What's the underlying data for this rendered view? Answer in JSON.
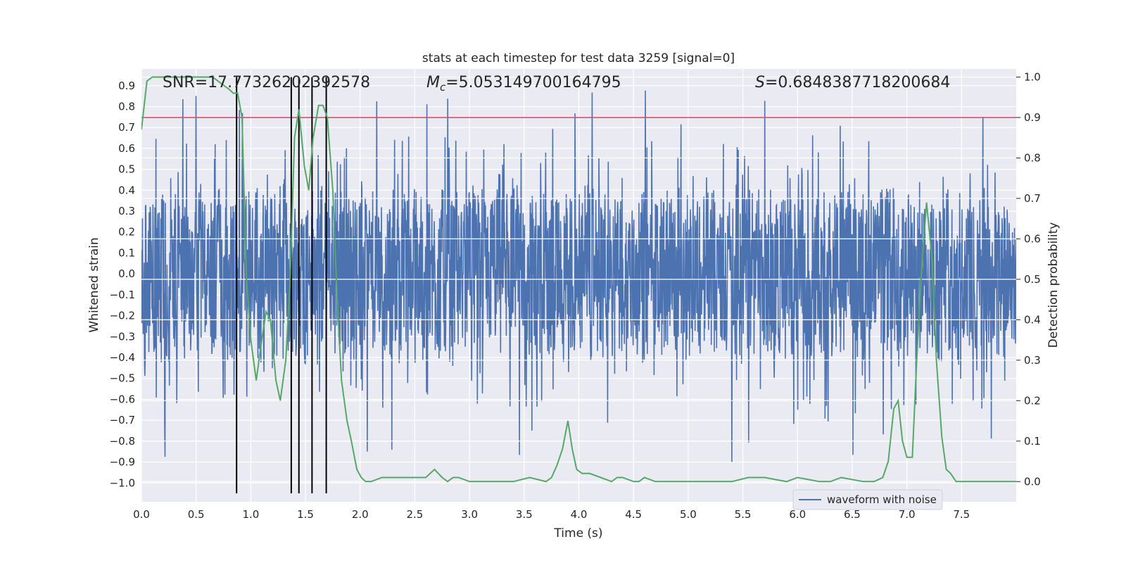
{
  "chart_data": {
    "type": "line",
    "title": "stats at each timestep for test data 3259 [signal=0]",
    "xlabel": "Time (s)",
    "ylabel": "Whitened strain",
    "ylabel_right": "Detection probability",
    "xlim": [
      0.0,
      8.0
    ],
    "ylim": [
      -1.09,
      0.98
    ],
    "ylim_right": [
      -0.05,
      1.02
    ],
    "x_ticks": [
      "0.0",
      "0.5",
      "1.0",
      "1.5",
      "2.0",
      "2.5",
      "3.0",
      "3.5",
      "4.0",
      "4.5",
      "5.0",
      "5.5",
      "6.0",
      "6.5",
      "7.0",
      "7.5"
    ],
    "y_ticks": [
      "0.9",
      "0.8",
      "0.7",
      "0.6",
      "0.5",
      "0.4",
      "0.3",
      "0.2",
      "0.1",
      "0.0",
      "−0.1",
      "−0.2",
      "−0.3",
      "−0.4",
      "−0.5",
      "−0.6",
      "−0.7",
      "−0.8",
      "−0.9",
      "−1.0"
    ],
    "y_right_ticks": [
      "1.0",
      "0.9",
      "0.8",
      "0.7",
      "0.6",
      "0.5",
      "0.4",
      "0.3",
      "0.2",
      "0.1",
      "0.0"
    ],
    "annotations": {
      "snr": "SNR=17.77326202392578",
      "mc_symbol": "M",
      "mc_sub": "c",
      "mc_value": "=5.053149700164795",
      "s_symbol": "S",
      "s_value": "=0.6848387718200684"
    },
    "legend": {
      "label": "waveform with noise",
      "position": "lower-right"
    },
    "threshold_line": {
      "y_right": 0.9,
      "color": "#c44e52"
    },
    "vertical_lines_x": [
      0.87,
      1.37,
      1.44,
      1.56,
      1.69
    ],
    "series": [
      {
        "name": "waveform with noise",
        "axis": "left",
        "color": "#4c72b0",
        "description": "whitened strain noise sampled at high rate, envelope approx ±0.4 with spikes to ±0.9"
      },
      {
        "name": "detection probability",
        "axis": "right",
        "color": "#55a868",
        "x": [
          0.0,
          0.05,
          0.1,
          0.2,
          0.3,
          0.4,
          0.5,
          0.6,
          0.65,
          0.7,
          0.75,
          0.8,
          0.84,
          0.88,
          0.92,
          0.96,
          1.0,
          1.05,
          1.1,
          1.14,
          1.18,
          1.23,
          1.27,
          1.32,
          1.36,
          1.4,
          1.44,
          1.49,
          1.53,
          1.57,
          1.62,
          1.66,
          1.7,
          1.75,
          1.79,
          1.83,
          1.88,
          1.92,
          1.97,
          2.01,
          2.05,
          2.1,
          2.2,
          2.3,
          2.4,
          2.5,
          2.6,
          2.68,
          2.75,
          2.8,
          2.85,
          2.9,
          3.0,
          3.2,
          3.4,
          3.55,
          3.7,
          3.75,
          3.8,
          3.85,
          3.9,
          3.94,
          3.98,
          4.03,
          4.1,
          4.2,
          4.3,
          4.35,
          4.4,
          4.5,
          4.55,
          4.6,
          4.7,
          4.8,
          5.0,
          5.2,
          5.4,
          5.55,
          5.7,
          5.9,
          6.0,
          6.2,
          6.3,
          6.4,
          6.6,
          6.7,
          6.78,
          6.83,
          6.88,
          6.92,
          6.96,
          7.0,
          7.05,
          7.09,
          7.14,
          7.18,
          7.23,
          7.27,
          7.32,
          7.36,
          7.4,
          7.45,
          7.6,
          7.9,
          8.0
        ],
        "values": [
          0.87,
          0.99,
          1.0,
          1.0,
          1.0,
          1.0,
          1.0,
          1.0,
          1.0,
          0.99,
          0.98,
          0.97,
          0.96,
          0.96,
          0.9,
          0.5,
          0.35,
          0.25,
          0.35,
          0.42,
          0.4,
          0.25,
          0.2,
          0.3,
          0.5,
          0.85,
          0.92,
          0.78,
          0.72,
          0.85,
          0.93,
          0.93,
          0.9,
          0.72,
          0.45,
          0.25,
          0.15,
          0.1,
          0.03,
          0.01,
          0.0,
          0.0,
          0.01,
          0.01,
          0.01,
          0.01,
          0.01,
          0.03,
          0.01,
          0.0,
          0.01,
          0.01,
          0.0,
          0.0,
          0.0,
          0.01,
          0.0,
          0.01,
          0.04,
          0.08,
          0.15,
          0.08,
          0.03,
          0.02,
          0.02,
          0.01,
          0.0,
          0.01,
          0.01,
          0.0,
          0.0,
          0.01,
          0.0,
          0.0,
          0.0,
          0.0,
          0.0,
          0.01,
          0.01,
          0.0,
          0.01,
          0.0,
          0.0,
          0.01,
          0.0,
          0.0,
          0.01,
          0.05,
          0.18,
          0.2,
          0.1,
          0.06,
          0.06,
          0.3,
          0.55,
          0.69,
          0.55,
          0.3,
          0.11,
          0.03,
          0.02,
          0.0,
          0.0,
          0.0,
          0.0
        ]
      }
    ]
  }
}
